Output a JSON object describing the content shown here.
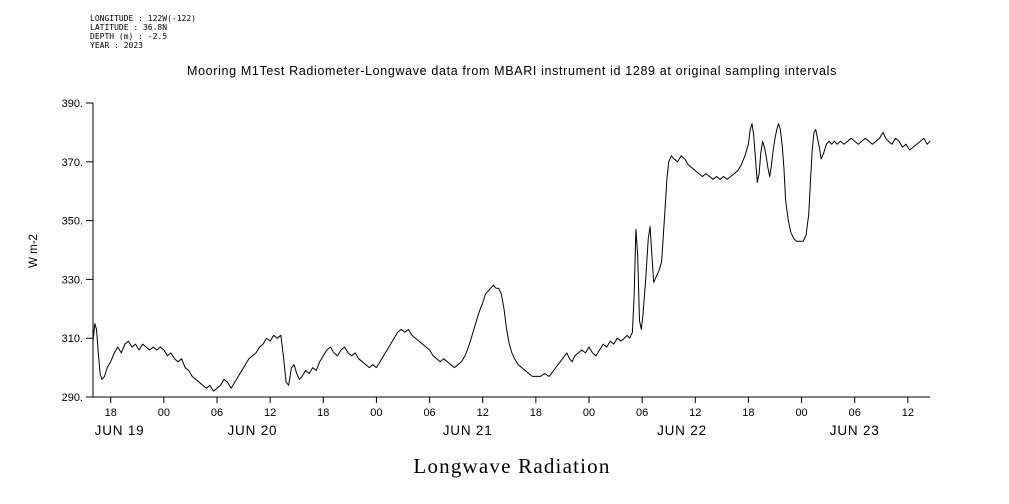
{
  "metadata": {
    "longitude": "LONGITUDE : 122W(-122)",
    "latitude": "LATITUDE : 36.8N",
    "depth": "DEPTH (m) : -2.5",
    "year": "YEAR : 2023"
  },
  "chart_data": {
    "type": "line",
    "title": "Mooring M1Test Radiometer-Longwave data from MBARI instrument id 1289 at original sampling intervals",
    "xlabel": "Longwave Radiation",
    "ylabel": "W m-2",
    "ylim": [
      290,
      390
    ],
    "grid": false,
    "legend": "none",
    "line_color": "#000000",
    "x_unit": "hours_from_plot_start (plot starts ~16:00 JUN 19 2023, ends ~14:30 JUN 23 2023)",
    "x_domain_hours": [
      0,
      94.5
    ],
    "y_ticks": [
      {
        "value": 290,
        "label": "290."
      },
      {
        "value": 310,
        "label": "310."
      },
      {
        "value": 330,
        "label": "330."
      },
      {
        "value": 350,
        "label": "350."
      },
      {
        "value": 370,
        "label": "370."
      },
      {
        "value": 390,
        "label": "390."
      }
    ],
    "x_ticks": [
      {
        "t": 2,
        "label": "18"
      },
      {
        "t": 8,
        "label": "00"
      },
      {
        "t": 14,
        "label": "06"
      },
      {
        "t": 20,
        "label": "12"
      },
      {
        "t": 26,
        "label": "18"
      },
      {
        "t": 32,
        "label": "00"
      },
      {
        "t": 38,
        "label": "06"
      },
      {
        "t": 44,
        "label": "12"
      },
      {
        "t": 50,
        "label": "18"
      },
      {
        "t": 56,
        "label": "00"
      },
      {
        "t": 62,
        "label": "06"
      },
      {
        "t": 68,
        "label": "12"
      },
      {
        "t": 74,
        "label": "18"
      },
      {
        "t": 80,
        "label": "00"
      },
      {
        "t": 86,
        "label": "06"
      },
      {
        "t": 92,
        "label": "12"
      }
    ],
    "x_date_labels": [
      {
        "t": 3,
        "label": "JUN 19"
      },
      {
        "t": 18,
        "label": "JUN 20"
      },
      {
        "t": 42.3,
        "label": "JUN 21"
      },
      {
        "t": 66.5,
        "label": "JUN 22"
      },
      {
        "t": 86,
        "label": "JUN 23"
      }
    ],
    "series": [
      {
        "name": "Longwave Radiation (W m-2)",
        "points": [
          [
            0,
            309
          ],
          [
            0.2,
            315
          ],
          [
            0.4,
            313
          ],
          [
            0.6,
            305
          ],
          [
            0.8,
            298
          ],
          [
            1,
            296
          ],
          [
            1.3,
            297
          ],
          [
            1.6,
            300
          ],
          [
            2,
            302
          ],
          [
            2.4,
            305
          ],
          [
            2.8,
            307
          ],
          [
            3.2,
            305
          ],
          [
            3.6,
            308
          ],
          [
            4,
            309
          ],
          [
            4.4,
            307
          ],
          [
            4.8,
            308
          ],
          [
            5.2,
            306
          ],
          [
            5.6,
            308
          ],
          [
            6,
            307
          ],
          [
            6.4,
            306
          ],
          [
            6.8,
            307
          ],
          [
            7.2,
            306
          ],
          [
            7.6,
            307
          ],
          [
            8,
            306
          ],
          [
            8.4,
            304
          ],
          [
            8.8,
            305
          ],
          [
            9.2,
            303
          ],
          [
            9.6,
            302
          ],
          [
            10,
            303
          ],
          [
            10.4,
            300
          ],
          [
            10.8,
            299
          ],
          [
            11.2,
            297
          ],
          [
            11.6,
            296
          ],
          [
            12,
            295
          ],
          [
            12.4,
            294
          ],
          [
            12.8,
            293
          ],
          [
            13.2,
            294
          ],
          [
            13.6,
            292
          ],
          [
            14,
            293
          ],
          [
            14.4,
            294
          ],
          [
            14.8,
            296
          ],
          [
            15.2,
            295
          ],
          [
            15.6,
            293
          ],
          [
            16,
            295
          ],
          [
            16.4,
            297
          ],
          [
            16.8,
            299
          ],
          [
            17.2,
            301
          ],
          [
            17.6,
            303
          ],
          [
            18,
            304
          ],
          [
            18.4,
            305
          ],
          [
            18.8,
            307
          ],
          [
            19.2,
            308
          ],
          [
            19.6,
            310
          ],
          [
            20,
            309
          ],
          [
            20.4,
            311
          ],
          [
            20.8,
            310
          ],
          [
            21.2,
            311
          ],
          [
            21.5,
            304
          ],
          [
            21.8,
            295
          ],
          [
            22.1,
            294
          ],
          [
            22.4,
            300
          ],
          [
            22.7,
            301
          ],
          [
            23,
            298
          ],
          [
            23.3,
            296
          ],
          [
            23.6,
            297
          ],
          [
            24,
            299
          ],
          [
            24.4,
            298
          ],
          [
            24.8,
            300
          ],
          [
            25.2,
            299
          ],
          [
            25.6,
            302
          ],
          [
            26,
            304
          ],
          [
            26.4,
            306
          ],
          [
            26.8,
            307
          ],
          [
            27.2,
            305
          ],
          [
            27.6,
            304
          ],
          [
            28,
            306
          ],
          [
            28.4,
            307
          ],
          [
            28.8,
            305
          ],
          [
            29.2,
            304
          ],
          [
            29.6,
            305
          ],
          [
            30,
            303
          ],
          [
            30.4,
            302
          ],
          [
            30.8,
            301
          ],
          [
            31.2,
            300
          ],
          [
            31.6,
            301
          ],
          [
            32,
            300
          ],
          [
            32.4,
            302
          ],
          [
            32.8,
            304
          ],
          [
            33.2,
            306
          ],
          [
            33.6,
            308
          ],
          [
            34,
            310
          ],
          [
            34.4,
            312
          ],
          [
            34.8,
            313
          ],
          [
            35.2,
            312
          ],
          [
            35.6,
            313
          ],
          [
            36,
            311
          ],
          [
            36.4,
            310
          ],
          [
            36.8,
            309
          ],
          [
            37.2,
            308
          ],
          [
            37.6,
            307
          ],
          [
            38,
            306
          ],
          [
            38.4,
            304
          ],
          [
            38.8,
            303
          ],
          [
            39.2,
            302
          ],
          [
            39.6,
            303
          ],
          [
            40,
            302
          ],
          [
            40.4,
            301
          ],
          [
            40.8,
            300
          ],
          [
            41.2,
            301
          ],
          [
            41.6,
            302
          ],
          [
            42,
            304
          ],
          [
            42.4,
            307
          ],
          [
            42.8,
            311
          ],
          [
            43.2,
            315
          ],
          [
            43.6,
            319
          ],
          [
            44,
            322
          ],
          [
            44.3,
            325
          ],
          [
            44.6,
            326
          ],
          [
            44.9,
            327
          ],
          [
            45.2,
            328
          ],
          [
            45.5,
            327
          ],
          [
            45.8,
            327
          ],
          [
            46.1,
            325
          ],
          [
            46.4,
            320
          ],
          [
            46.7,
            313
          ],
          [
            47,
            308
          ],
          [
            47.3,
            305
          ],
          [
            47.6,
            303
          ],
          [
            48,
            301
          ],
          [
            48.4,
            300
          ],
          [
            48.8,
            299
          ],
          [
            49.2,
            298
          ],
          [
            49.6,
            297
          ],
          [
            50,
            297
          ],
          [
            50.5,
            297
          ],
          [
            51,
            298
          ],
          [
            51.5,
            297
          ],
          [
            52,
            299
          ],
          [
            52.5,
            301
          ],
          [
            53,
            303
          ],
          [
            53.5,
            305
          ],
          [
            53.8,
            303
          ],
          [
            54.1,
            302
          ],
          [
            54.4,
            304
          ],
          [
            54.8,
            305
          ],
          [
            55.2,
            306
          ],
          [
            55.6,
            305
          ],
          [
            56,
            307
          ],
          [
            56.4,
            305
          ],
          [
            56.8,
            304
          ],
          [
            57.2,
            306
          ],
          [
            57.6,
            308
          ],
          [
            58,
            307
          ],
          [
            58.4,
            309
          ],
          [
            58.8,
            308
          ],
          [
            59.2,
            310
          ],
          [
            59.6,
            309
          ],
          [
            60,
            310
          ],
          [
            60.3,
            311
          ],
          [
            60.6,
            310
          ],
          [
            60.9,
            312
          ],
          [
            61.1,
            325
          ],
          [
            61.3,
            347
          ],
          [
            61.5,
            338
          ],
          [
            61.7,
            316
          ],
          [
            61.9,
            313
          ],
          [
            62.1,
            318
          ],
          [
            62.4,
            330
          ],
          [
            62.7,
            344
          ],
          [
            62.9,
            348
          ],
          [
            63.1,
            338
          ],
          [
            63.3,
            329
          ],
          [
            63.6,
            331
          ],
          [
            63.9,
            333
          ],
          [
            64.2,
            336
          ],
          [
            64.5,
            350
          ],
          [
            64.8,
            364
          ],
          [
            65,
            370
          ],
          [
            65.3,
            372
          ],
          [
            65.6,
            371
          ],
          [
            66,
            370
          ],
          [
            66.4,
            372
          ],
          [
            66.8,
            371
          ],
          [
            67.2,
            369
          ],
          [
            67.6,
            368
          ],
          [
            68,
            367
          ],
          [
            68.4,
            366
          ],
          [
            68.8,
            365
          ],
          [
            69.2,
            366
          ],
          [
            69.6,
            365
          ],
          [
            70,
            364
          ],
          [
            70.4,
            365
          ],
          [
            70.8,
            364
          ],
          [
            71.2,
            365
          ],
          [
            71.6,
            364
          ],
          [
            72,
            365
          ],
          [
            72.4,
            366
          ],
          [
            72.8,
            367
          ],
          [
            73.2,
            369
          ],
          [
            73.6,
            372
          ],
          [
            74,
            376
          ],
          [
            74.2,
            381
          ],
          [
            74.4,
            383
          ],
          [
            74.6,
            379
          ],
          [
            74.8,
            371
          ],
          [
            75,
            363
          ],
          [
            75.2,
            366
          ],
          [
            75.4,
            373
          ],
          [
            75.6,
            377
          ],
          [
            75.8,
            375
          ],
          [
            76,
            372
          ],
          [
            76.2,
            368
          ],
          [
            76.4,
            365
          ],
          [
            76.6,
            369
          ],
          [
            76.8,
            374
          ],
          [
            77,
            378
          ],
          [
            77.2,
            381
          ],
          [
            77.4,
            383
          ],
          [
            77.6,
            381
          ],
          [
            77.8,
            376
          ],
          [
            78,
            368
          ],
          [
            78.2,
            357
          ],
          [
            78.5,
            350
          ],
          [
            78.8,
            346
          ],
          [
            79.1,
            344
          ],
          [
            79.4,
            343
          ],
          [
            79.8,
            343
          ],
          [
            80.2,
            343
          ],
          [
            80.5,
            345
          ],
          [
            80.8,
            352
          ],
          [
            81,
            363
          ],
          [
            81.2,
            374
          ],
          [
            81.4,
            380
          ],
          [
            81.6,
            381
          ],
          [
            81.8,
            378
          ],
          [
            82,
            375
          ],
          [
            82.2,
            371
          ],
          [
            82.5,
            373
          ],
          [
            82.8,
            376
          ],
          [
            83.1,
            377
          ],
          [
            83.4,
            376
          ],
          [
            83.7,
            377
          ],
          [
            84,
            376
          ],
          [
            84.4,
            377
          ],
          [
            84.8,
            376
          ],
          [
            85.2,
            377
          ],
          [
            85.6,
            378
          ],
          [
            86,
            377
          ],
          [
            86.4,
            376
          ],
          [
            86.8,
            377
          ],
          [
            87.2,
            378
          ],
          [
            87.6,
            377
          ],
          [
            88,
            376
          ],
          [
            88.4,
            377
          ],
          [
            88.8,
            378
          ],
          [
            89.2,
            380
          ],
          [
            89.5,
            378
          ],
          [
            89.8,
            377
          ],
          [
            90.2,
            376
          ],
          [
            90.6,
            378
          ],
          [
            91,
            377
          ],
          [
            91.4,
            375
          ],
          [
            91.8,
            376
          ],
          [
            92.2,
            374
          ],
          [
            92.6,
            375
          ],
          [
            93,
            376
          ],
          [
            93.4,
            377
          ],
          [
            93.8,
            378
          ],
          [
            94.2,
            376
          ],
          [
            94.5,
            377
          ]
        ]
      }
    ]
  }
}
